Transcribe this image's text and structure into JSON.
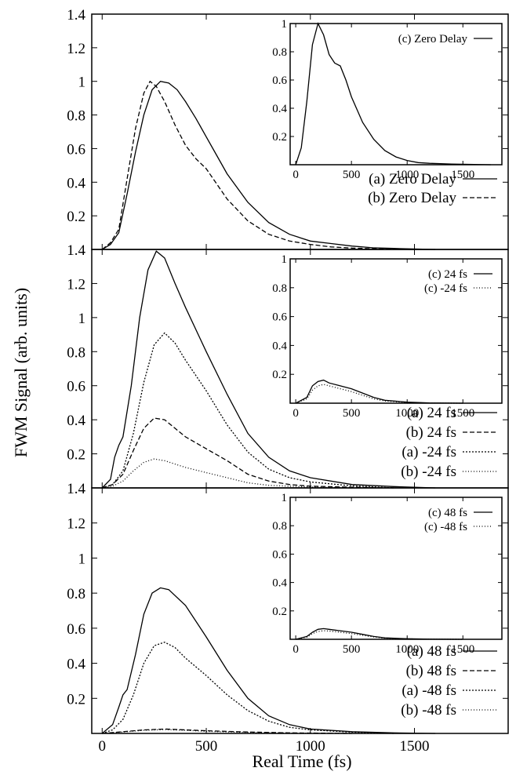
{
  "figure": {
    "xlabel": "Real Time (fs)",
    "ylabel": "FWM Signal (arb. units)"
  },
  "chart_data": [
    {
      "type": "line",
      "xlim": [
        -50,
        1950
      ],
      "ylim": [
        0,
        1.4
      ],
      "x_ticks": [
        0,
        500,
        1000,
        1500
      ],
      "y_ticks": [
        0.2,
        0.4,
        0.6,
        0.8,
        1,
        1.2,
        1.4
      ],
      "grid": false,
      "legend_position": "right",
      "series": [
        {
          "name": "(a) Zero Delay",
          "style": "solid",
          "x": [
            0,
            40,
            80,
            120,
            160,
            200,
            240,
            280,
            320,
            360,
            400,
            450,
            500,
            550,
            600,
            700,
            800,
            900,
            1000,
            1100,
            1200,
            1300,
            1400,
            1500,
            1600
          ],
          "y": [
            0,
            0.03,
            0.1,
            0.33,
            0.58,
            0.8,
            0.95,
            1.0,
            0.99,
            0.95,
            0.88,
            0.78,
            0.67,
            0.56,
            0.45,
            0.28,
            0.16,
            0.09,
            0.05,
            0.035,
            0.02,
            0.01,
            0.006,
            0.003,
            0.0
          ]
        },
        {
          "name": "(b) Zero Delay",
          "style": "dashed",
          "x": [
            0,
            40,
            80,
            120,
            160,
            200,
            230,
            260,
            300,
            350,
            400,
            450,
            500,
            550,
            600,
            700,
            800,
            900,
            1000,
            1100,
            1200,
            1300,
            1400,
            1500
          ],
          "y": [
            0,
            0.04,
            0.12,
            0.42,
            0.72,
            0.93,
            1.0,
            0.97,
            0.88,
            0.74,
            0.62,
            0.54,
            0.48,
            0.39,
            0.3,
            0.17,
            0.09,
            0.05,
            0.03,
            0.015,
            0.008,
            0.004,
            0.002,
            0.0
          ]
        }
      ],
      "inset": {
        "xlim": [
          -50,
          1850
        ],
        "ylim": [
          0,
          1
        ],
        "x_ticks": [
          0,
          500,
          1000,
          1500
        ],
        "y_ticks": [
          0.2,
          0.4,
          0.6,
          0.8,
          1
        ],
        "series": [
          {
            "name": "(c) Zero Delay",
            "style": "solid",
            "x": [
              0,
              50,
              100,
              150,
              200,
              250,
              300,
              350,
              400,
              450,
              500,
              600,
              700,
              800,
              900,
              1000,
              1100,
              1200,
              1400,
              1600,
              1750
            ],
            "y": [
              0,
              0.12,
              0.45,
              0.85,
              1.0,
              0.92,
              0.78,
              0.72,
              0.7,
              0.6,
              0.48,
              0.3,
              0.18,
              0.1,
              0.055,
              0.03,
              0.015,
              0.01,
              0.005,
              0.002,
              0.0
            ]
          }
        ]
      }
    },
    {
      "type": "line",
      "xlim": [
        -50,
        1950
      ],
      "ylim": [
        0,
        1.4
      ],
      "x_ticks": [
        0,
        500,
        1000,
        1500
      ],
      "y_ticks": [
        0.2,
        0.4,
        0.6,
        0.8,
        1,
        1.2,
        1.4
      ],
      "grid": false,
      "legend_position": "right",
      "series": [
        {
          "name": "(a)  24 fs",
          "style": "solid",
          "x": [
            0,
            40,
            60,
            80,
            100,
            140,
            180,
            220,
            260,
            300,
            350,
            400,
            500,
            600,
            700,
            800,
            900,
            1000,
            1200,
            1400,
            1600
          ],
          "y": [
            0,
            0.05,
            0.18,
            0.25,
            0.3,
            0.6,
            1.0,
            1.28,
            1.39,
            1.35,
            1.2,
            1.06,
            0.8,
            0.55,
            0.32,
            0.18,
            0.1,
            0.06,
            0.02,
            0.008,
            0.0
          ]
        },
        {
          "name": "(b)  24 fs",
          "style": "dashed",
          "x": [
            0,
            50,
            100,
            150,
            200,
            250,
            300,
            350,
            400,
            500,
            600,
            700,
            800,
            900,
            1000,
            1200,
            1400
          ],
          "y": [
            0,
            0.02,
            0.08,
            0.22,
            0.35,
            0.41,
            0.4,
            0.35,
            0.3,
            0.23,
            0.16,
            0.08,
            0.04,
            0.02,
            0.01,
            0.004,
            0.0
          ]
        },
        {
          "name": "(a)  -24 fs",
          "style": "dotted-fine",
          "x": [
            0,
            50,
            100,
            150,
            200,
            250,
            300,
            350,
            400,
            500,
            600,
            700,
            800,
            900,
            1000,
            1200,
            1400
          ],
          "y": [
            0,
            0.02,
            0.1,
            0.32,
            0.62,
            0.84,
            0.91,
            0.85,
            0.75,
            0.57,
            0.37,
            0.21,
            0.11,
            0.06,
            0.035,
            0.012,
            0.0
          ]
        },
        {
          "name": "(b)  -24 fs",
          "style": "dotted",
          "x": [
            0,
            50,
            100,
            150,
            200,
            250,
            300,
            350,
            400,
            500,
            600,
            700,
            800,
            1000,
            1200
          ],
          "y": [
            0,
            0.01,
            0.04,
            0.1,
            0.15,
            0.17,
            0.16,
            0.14,
            0.12,
            0.09,
            0.06,
            0.03,
            0.015,
            0.005,
            0.0
          ]
        }
      ],
      "inset": {
        "xlim": [
          -50,
          1850
        ],
        "ylim": [
          0,
          1
        ],
        "x_ticks": [
          0,
          500,
          1000,
          1500
        ],
        "y_ticks": [
          0.2,
          0.4,
          0.6,
          0.8,
          1
        ],
        "series": [
          {
            "name": "(c)  24 fs",
            "style": "solid",
            "x": [
              0,
              100,
              150,
              200,
              250,
              300,
              400,
              500,
              600,
              700,
              800,
              1000,
              1200,
              1500
            ],
            "y": [
              0,
              0.04,
              0.12,
              0.15,
              0.16,
              0.14,
              0.12,
              0.1,
              0.07,
              0.04,
              0.02,
              0.007,
              0.002,
              0.0
            ]
          },
          {
            "name": "(c)  -24 fs",
            "style": "dotted",
            "x": [
              0,
              100,
              150,
              200,
              250,
              300,
              400,
              500,
              600,
              700,
              800,
              1000,
              1200,
              1500
            ],
            "y": [
              0,
              0.03,
              0.09,
              0.12,
              0.13,
              0.12,
              0.1,
              0.08,
              0.055,
              0.03,
              0.015,
              0.005,
              0.001,
              0.0
            ]
          }
        ]
      }
    },
    {
      "type": "line",
      "xlim": [
        -50,
        1950
      ],
      "ylim": [
        0,
        1.4
      ],
      "x_ticks": [
        0,
        500,
        1000,
        1500
      ],
      "y_ticks": [
        0.2,
        0.4,
        0.6,
        0.8,
        1,
        1.2,
        1.4
      ],
      "grid": false,
      "legend_position": "right",
      "series": [
        {
          "name": "(a)  48 fs",
          "style": "solid",
          "x": [
            0,
            50,
            80,
            100,
            120,
            160,
            200,
            240,
            280,
            320,
            400,
            500,
            600,
            700,
            800,
            900,
            1000,
            1200,
            1400,
            1600
          ],
          "y": [
            0,
            0.05,
            0.15,
            0.22,
            0.25,
            0.45,
            0.68,
            0.8,
            0.83,
            0.82,
            0.73,
            0.55,
            0.36,
            0.2,
            0.1,
            0.05,
            0.025,
            0.01,
            0.003,
            0.0
          ]
        },
        {
          "name": "(b)  48 fs",
          "style": "dashed",
          "x": [
            0,
            100,
            200,
            300,
            400,
            500,
            700,
            900,
            1200
          ],
          "y": [
            0,
            0.01,
            0.02,
            0.025,
            0.02,
            0.015,
            0.008,
            0.003,
            0.0
          ]
        },
        {
          "name": "(a)  -48 fs",
          "style": "dotted-fine",
          "x": [
            0,
            50,
            100,
            150,
            200,
            250,
            300,
            350,
            400,
            500,
            600,
            700,
            800,
            900,
            1000,
            1200,
            1400
          ],
          "y": [
            0,
            0.02,
            0.08,
            0.22,
            0.4,
            0.5,
            0.52,
            0.49,
            0.43,
            0.33,
            0.22,
            0.13,
            0.07,
            0.035,
            0.02,
            0.007,
            0.0
          ]
        },
        {
          "name": "(b)  -48 fs",
          "style": "dotted",
          "x": [
            0,
            100,
            200,
            300,
            400,
            500,
            700,
            900,
            1200
          ],
          "y": [
            0,
            0.008,
            0.018,
            0.022,
            0.018,
            0.012,
            0.006,
            0.002,
            0.0
          ]
        }
      ],
      "inset": {
        "xlim": [
          -50,
          1850
        ],
        "ylim": [
          0,
          1
        ],
        "x_ticks": [
          0,
          500,
          1000,
          1500
        ],
        "y_ticks": [
          0.2,
          0.4,
          0.6,
          0.8,
          1
        ],
        "series": [
          {
            "name": "(c)  48 fs",
            "style": "solid",
            "x": [
              0,
              100,
              150,
              200,
              250,
              300,
              400,
              500,
              600,
              700,
              800,
              1000,
              1200,
              1500
            ],
            "y": [
              0,
              0.02,
              0.05,
              0.07,
              0.075,
              0.07,
              0.06,
              0.05,
              0.035,
              0.02,
              0.01,
              0.004,
              0.001,
              0.0
            ]
          },
          {
            "name": "(c)  -48 fs",
            "style": "dotted",
            "x": [
              0,
              100,
              150,
              200,
              250,
              300,
              400,
              500,
              600,
              700,
              800,
              1000,
              1200,
              1500
            ],
            "y": [
              0,
              0.015,
              0.04,
              0.055,
              0.06,
              0.058,
              0.05,
              0.04,
              0.028,
              0.016,
              0.008,
              0.003,
              0.001,
              0.0
            ]
          }
        ]
      }
    }
  ]
}
